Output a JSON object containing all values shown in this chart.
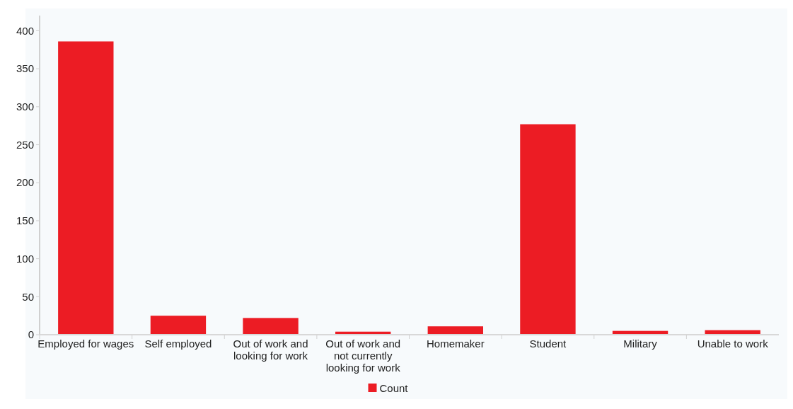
{
  "chart_data": {
    "type": "bar",
    "categories": [
      "Employed for wages",
      "Self employed",
      "Out of work and looking for work",
      "Out of work and not currently looking for work",
      "Homemaker",
      "Student",
      "Military",
      "Unable to work"
    ],
    "series": [
      {
        "name": "Count",
        "color": "#ec1c24",
        "values": [
          386,
          25,
          22,
          4,
          11,
          277,
          5,
          6
        ]
      }
    ],
    "ylim": [
      0,
      420
    ],
    "yticks": [
      0,
      50,
      100,
      150,
      200,
      250,
      300,
      350,
      400
    ],
    "grid": false,
    "legend": "bottom"
  }
}
